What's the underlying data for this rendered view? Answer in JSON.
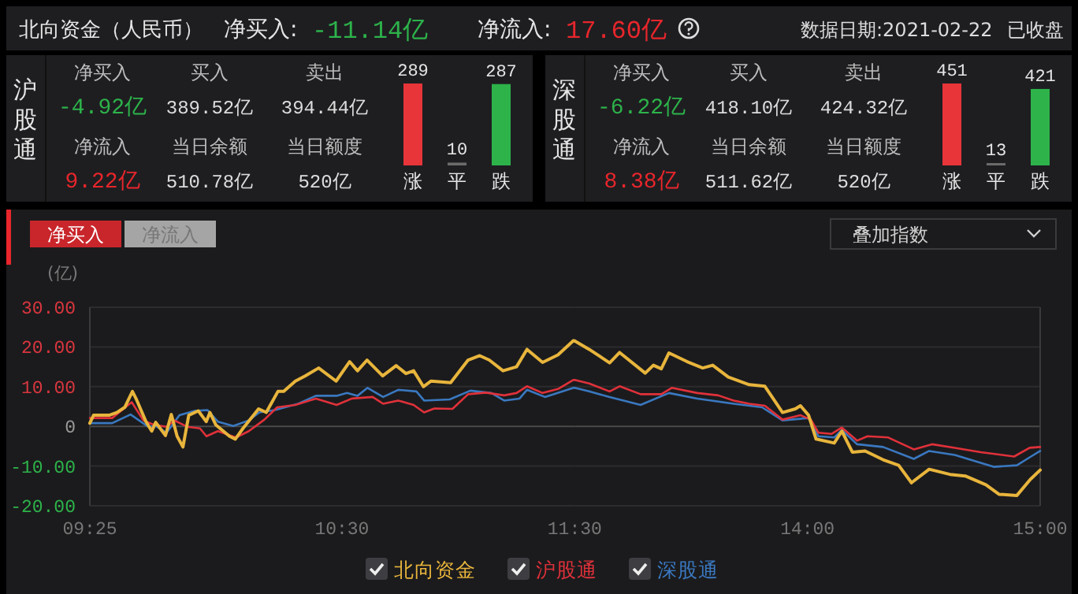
{
  "chart_data": [
    {
      "type": "other",
      "title": "北向资金（人民币）",
      "annotations": [
        "净买入:",
        "-11.14亿",
        "净流入:",
        "17.60亿",
        "数据日期:2021-02-22",
        "已收盘"
      ]
    },
    {
      "type": "other",
      "title": "沪股通",
      "categories": [
        "净买入",
        "买入",
        "卖出",
        "净流入",
        "当日余额",
        "当日额度"
      ],
      "value_labels": [
        "-4.92亿",
        "389.52亿",
        "394.44亿",
        "9.22亿",
        "510.78亿",
        "520亿"
      ],
      "colors": [
        "#2db34a",
        "#dcdcdc",
        "#dcdcdc",
        "#e8262b",
        "#dcdcdc",
        "#dcdcdc"
      ]
    },
    {
      "type": "bar",
      "categories": [
        "涨",
        "平",
        "跌"
      ],
      "values": [
        289,
        10,
        287
      ],
      "colors": [
        "#e8353a",
        "#6b6b6b",
        "#2db34a"
      ],
      "data_labels": true
    },
    {
      "type": "other",
      "title": "深股通",
      "categories": [
        "净买入",
        "买入",
        "卖出",
        "净流入",
        "当日余额",
        "当日额度"
      ],
      "value_labels": [
        "-6.22亿",
        "418.10亿",
        "424.32亿",
        "8.38亿",
        "511.62亿",
        "520亿"
      ],
      "colors": [
        "#2db34a",
        "#dcdcdc",
        "#dcdcdc",
        "#e8262b",
        "#dcdcdc",
        "#dcdcdc"
      ]
    },
    {
      "type": "bar",
      "categories": [
        "涨",
        "平",
        "跌"
      ],
      "values": [
        451,
        13,
        421
      ],
      "colors": [
        "#e8353a",
        "#6b6b6b",
        "#2db34a"
      ],
      "data_labels": true
    },
    {
      "type": "line",
      "ylabel": "(亿)",
      "annotations": [
        "净买入",
        "净流入",
        "叠加指数"
      ],
      "xlim": [
        9.417,
        11.5
      ],
      "xticks": [
        {
          "value": 9.417,
          "label": "09:25"
        },
        {
          "value": 10.5,
          "label": "10:30"
        },
        {
          "value": 11.5,
          "label": "11:30"
        }
      ],
      "ylim": [
        -20,
        30
      ],
      "yticks": [
        {
          "value": -20,
          "label": "-20.00"
        },
        {
          "value": -10,
          "label": "-10.00"
        },
        0,
        {
          "value": 10,
          "label": "10.00"
        },
        {
          "value": 20,
          "label": "20.00"
        },
        {
          "value": 30,
          "label": "30.00"
        }
      ],
      "grid": "y",
      "legend": "bottom",
      "series": [
        {
          "name": "北向资金",
          "color": "#e8b53c",
          "x": [
            9.417,
            9.433,
            9.5,
            9.533,
            9.567,
            9.6,
            9.617,
            9.658,
            9.683,
            9.7,
            9.742,
            9.767,
            9.792,
            9.817,
            9.842,
            9.883,
            9.917,
            9.933,
            9.958,
            10.017,
            10.042,
            10.075,
            10.142,
            10.175,
            10.225,
            10.25,
            10.3,
            10.342,
            10.4,
            10.475,
            10.533,
            10.567,
            10.608,
            10.675,
            10.733,
            10.775,
            10.808,
            10.85,
            10.883,
            10.967,
            11.042,
            11.092,
            11.133,
            11.192,
            11.25,
            11.295,
            11.362,
            11.428,
            11.495,
            11.5
          ],
          "values": [
            0.8,
            2.8,
            2.8,
            3.5,
            4.8,
            8.8,
            6.8,
            1.2,
            -1.2,
            1,
            -2.3,
            3,
            -2.5,
            -5.2,
            2.8,
            3.9,
            1.2,
            3.5,
            0.4,
            -2.5,
            -3.2,
            -0.5,
            4.4,
            3.5,
            8.8,
            8.8,
            11.4,
            12.7,
            14.7,
            11.4,
            16.3,
            14,
            16.7,
            12.7,
            15.3,
            13.3,
            14,
            10,
            11.4,
            11,
            16.7,
            17.8,
            16.7,
            14,
            15,
            19.4,
            16.1,
            18,
            21.6,
            21.5
          ]
        },
        {
          "name": "沪股通",
          "color": "#e0313a",
          "x": [
            9.417,
            9.513,
            9.597,
            9.647,
            9.692,
            9.747,
            9.78,
            9.835,
            9.89,
            9.918,
            9.967,
            10.045,
            10.1,
            10.167,
            10.222,
            10.3,
            10.388,
            10.477,
            10.543,
            10.632,
            10.677,
            10.742,
            10.808,
            10.853,
            10.897,
            10.975,
            11.042,
            11.118,
            11.197,
            11.25,
            11.295,
            11.362,
            11.428,
            11.495,
            11.5
          ],
          "values": [
            2.1,
            2.1,
            6.1,
            1.5,
            0.4,
            -0.1,
            1.5,
            -0.1,
            -0.5,
            -2.5,
            -1.2,
            -2.8,
            -1.2,
            1.7,
            4.8,
            5.4,
            7,
            5.4,
            7,
            7.4,
            5.7,
            6.5,
            5.4,
            3.5,
            4.5,
            4.4,
            8.1,
            8.5,
            7.8,
            8.4,
            10.1,
            8.4,
            9.4,
            11.7,
            11.7
          ]
        },
        {
          "name": "深股通",
          "color": "#3a78c0",
          "x": [
            9.417,
            9.513,
            9.592,
            9.668,
            9.7,
            9.747,
            9.802,
            9.868,
            9.923,
            9.967,
            10.033,
            10.1,
            10.145,
            10.212,
            10.312,
            10.388,
            10.477,
            10.522,
            10.567,
            10.61,
            10.677,
            10.742,
            10.82,
            10.853,
            10.963,
            11.052,
            11.142,
            11.197,
            11.263,
            11.295,
            11.372,
            11.495,
            11.5
          ],
          "values": [
            0.8,
            0.8,
            3,
            -0.1,
            0.1,
            -1.6,
            2.8,
            3.9,
            4.1,
            1.2,
            0.1,
            1.5,
            3.5,
            4.1,
            5.7,
            7.7,
            7.7,
            8.4,
            7.7,
            9.7,
            7.4,
            9.2,
            8.8,
            6.5,
            6.8,
            9,
            8.4,
            6.5,
            7,
            9.2,
            7.4,
            9.7,
            9.7
          ]
        }
      ]
    },
    {
      "type": "line",
      "xlim": [
        13,
        15
      ],
      "xticks": [
        {
          "value": 14,
          "label": "14:00"
        },
        {
          "value": 15,
          "label": "15:00"
        }
      ],
      "ylim": [
        -20,
        30
      ],
      "yticks": [
        -20,
        -10,
        0,
        10,
        20,
        30
      ],
      "tick_labels": "x",
      "grid": "y",
      "series": [
        {
          "color": "#e8b53c",
          "x": [
            13,
            13.062,
            13.15,
            13.193,
            13.303,
            13.338,
            13.372,
            13.405,
            13.483,
            13.55,
            13.593,
            13.66,
            13.75,
            13.817,
            13.893,
            13.948,
            13.97,
            14.005,
            14.037,
            14.115,
            14.148,
            14.193,
            14.248,
            14.325,
            14.392,
            14.447,
            14.523,
            14.612,
            14.678,
            14.767,
            14.823,
            14.9,
            14.957,
            15
          ],
          "values": [
            21.5,
            19.4,
            16,
            18.6,
            13.4,
            15.4,
            14.5,
            18.5,
            16.3,
            14.7,
            15.4,
            12.4,
            10.5,
            10.1,
            3.5,
            4.4,
            5.2,
            2.8,
            -3.2,
            -4.2,
            -1.2,
            -6.5,
            -6.2,
            -8.4,
            -9.8,
            -14.2,
            -10.8,
            -12.1,
            -12.5,
            -14.7,
            -17.1,
            -17.4,
            -13.4,
            -11
          ]
        },
        {
          "color": "#e0313a",
          "x": [
            13,
            13.062,
            13.15,
            13.193,
            13.283,
            13.372,
            13.417,
            13.527,
            13.617,
            13.683,
            13.75,
            13.817,
            13.893,
            13.97,
            14.015,
            14.047,
            14.103,
            14.148,
            14.213,
            14.258,
            14.347,
            14.457,
            14.535,
            14.633,
            14.745,
            14.888,
            14.955,
            15
          ],
          "values": [
            11.7,
            10.8,
            8.8,
            10.1,
            8.1,
            8.1,
            9.7,
            8.4,
            7.8,
            6.5,
            5.7,
            5.2,
            1.7,
            2.8,
            1.7,
            -1.6,
            -1.9,
            -0.3,
            -3.6,
            -2.5,
            -2.8,
            -5.8,
            -4.5,
            -5.4,
            -6.5,
            -7.6,
            -5.4,
            -5.2
          ]
        },
        {
          "color": "#3a78c0",
          "x": [
            13,
            13.062,
            13.15,
            13.283,
            13.405,
            13.527,
            13.683,
            13.805,
            13.893,
            14.005,
            14.047,
            14.115,
            14.148,
            14.213,
            14.325,
            14.457,
            14.523,
            14.633,
            14.8,
            14.9,
            14.955,
            15
          ],
          "values": [
            9.7,
            8.8,
            7.4,
            5.4,
            8.4,
            7,
            5.7,
            4.8,
            1.5,
            2.1,
            -2.5,
            -2.8,
            -0.9,
            -4.5,
            -5.2,
            -8.2,
            -6.2,
            -7.2,
            -10.2,
            -9.8,
            -7.8,
            -6.2
          ]
        }
      ]
    }
  ]
}
